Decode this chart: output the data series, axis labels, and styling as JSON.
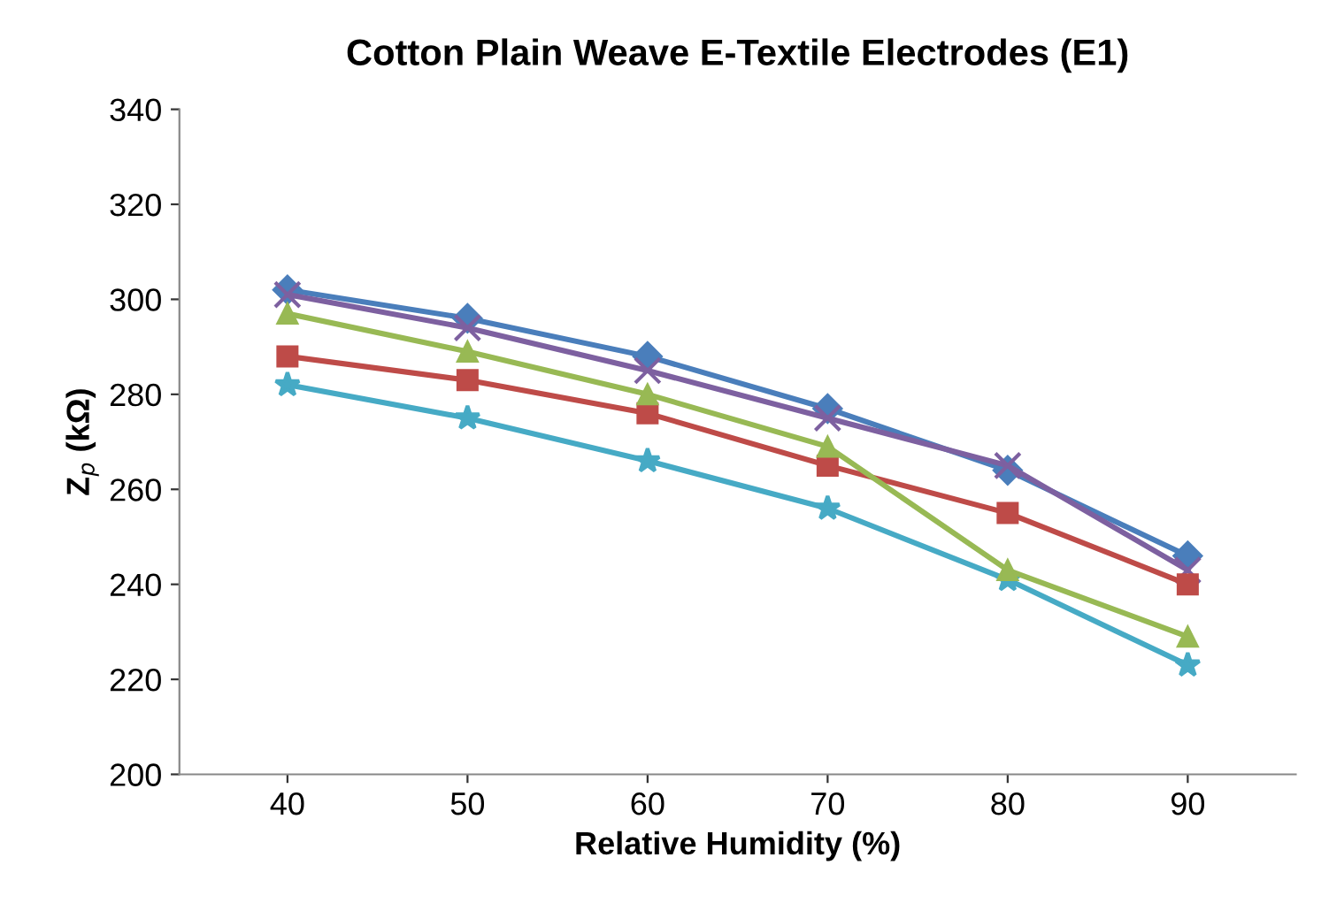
{
  "chart_data": {
    "type": "line",
    "title": "Cotton Plain Weave E-Textile Electrodes (E1)",
    "xlabel": "Relative Humidity (%)",
    "ylabel": "Z$_{p}$ (kΩ)",
    "categories": [
      "40",
      "50",
      "60",
      "70",
      "80",
      "90"
    ],
    "series": [
      {
        "color": "#4a7ebb",
        "marker": "diamond",
        "values": [
          302,
          296,
          288,
          277,
          264,
          246
        ]
      },
      {
        "color": "#7d60a0",
        "marker": "cross",
        "values": [
          301,
          294,
          285,
          275,
          265,
          243
        ]
      },
      {
        "color": "#98b954",
        "marker": "triangle",
        "values": [
          297,
          289,
          280,
          269,
          243,
          229
        ]
      },
      {
        "color": "#be4b48",
        "marker": "square",
        "values": [
          288,
          283,
          276,
          265,
          255,
          240
        ]
      },
      {
        "color": "#46aac5",
        "marker": "star",
        "values": [
          282,
          275,
          266,
          256,
          241,
          223
        ]
      }
    ],
    "ylim": [
      200,
      340
    ],
    "yticks": [
      200,
      220,
      240,
      260,
      280,
      300,
      320,
      340
    ],
    "grid": false,
    "legend": false,
    "line_style": "solid"
  }
}
